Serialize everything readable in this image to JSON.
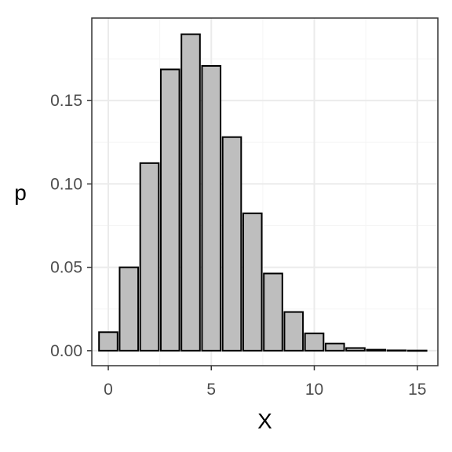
{
  "chart_data": {
    "type": "bar",
    "xlabel": "X",
    "ylabel": "p",
    "x": [
      0,
      1,
      2,
      3,
      4,
      5,
      6,
      7,
      8,
      9,
      10,
      11,
      12,
      13,
      14,
      15
    ],
    "values": [
      0.0111,
      0.05,
      0.1125,
      0.1687,
      0.1898,
      0.1708,
      0.1281,
      0.0824,
      0.0463,
      0.0232,
      0.0104,
      0.0043,
      0.0016,
      0.0006,
      0.0002,
      0.0001
    ],
    "xlim": [
      -0.8,
      16.0
    ],
    "ylim": [
      -0.009,
      0.1995
    ],
    "x_ticks": [
      0,
      5,
      10,
      15
    ],
    "x_tick_labels": [
      "0",
      "5",
      "10",
      "15"
    ],
    "y_ticks": [
      0.0,
      0.05,
      0.1,
      0.15
    ],
    "y_tick_labels": [
      "0.00",
      "0.05",
      "0.10",
      "0.15"
    ],
    "grid": true,
    "colors": {
      "bar_fill": "#bebebe",
      "bar_stroke": "#000000",
      "grid_major": "#ebebeb",
      "grid_minor": "#f5f5f5",
      "panel_border": "#333333"
    }
  }
}
